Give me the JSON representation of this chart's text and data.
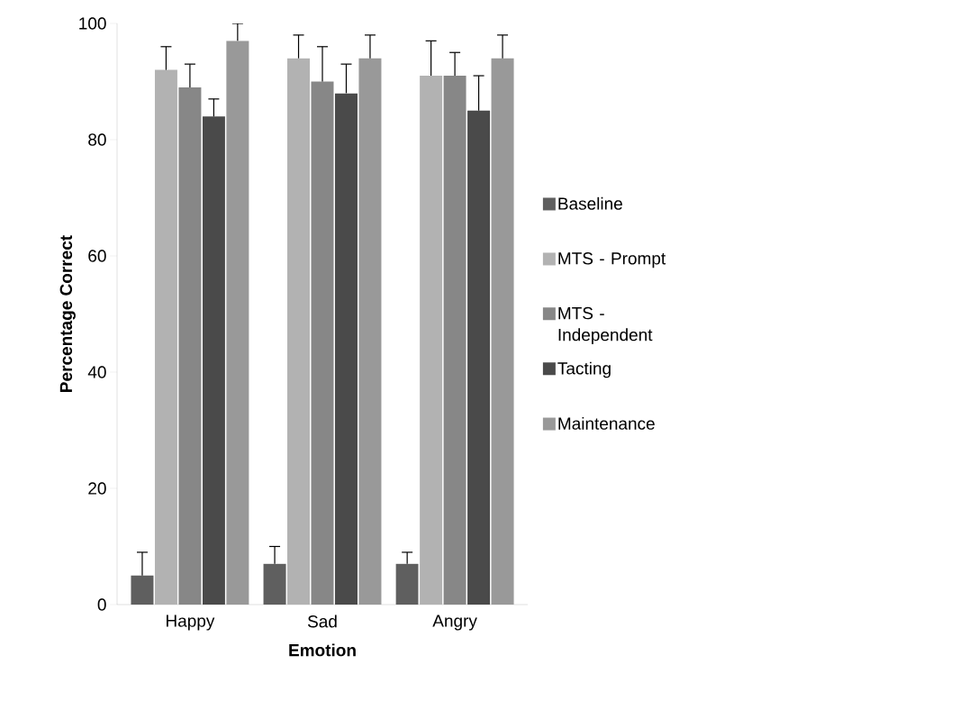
{
  "chart_data": {
    "type": "bar",
    "xlabel": "Emotion",
    "ylabel": "Percentage Correct",
    "categories": [
      "Happy",
      "Sad",
      "Angry"
    ],
    "series": [
      {
        "name": "Baseline",
        "color": "#5f5f5f",
        "values": [
          5,
          7,
          7
        ],
        "errors": [
          [
            5,
            9
          ],
          [
            7,
            10
          ],
          [
            7,
            9
          ]
        ]
      },
      {
        "name": "MTS - Prompt",
        "color": "#b2b2b2",
        "values": [
          92,
          94,
          91
        ],
        "errors": [
          [
            92,
            96
          ],
          [
            94,
            98
          ],
          [
            91,
            97
          ]
        ]
      },
      {
        "name": "MTS - Independent",
        "color": "#878787",
        "values": [
          89,
          90,
          91
        ],
        "errors": [
          [
            89,
            93
          ],
          [
            90,
            96
          ],
          [
            91,
            95
          ]
        ]
      },
      {
        "name": "Tacting",
        "color": "#4a4a4a",
        "values": [
          84,
          88,
          85
        ],
        "errors": [
          [
            84,
            87
          ],
          [
            88,
            93
          ],
          [
            85,
            91
          ]
        ]
      },
      {
        "name": "Maintenance",
        "color": "#999999",
        "values": [
          97,
          94,
          94
        ],
        "errors": [
          [
            97,
            100
          ],
          [
            94,
            98
          ],
          [
            94,
            98
          ]
        ]
      }
    ],
    "ylim": [
      0,
      100
    ],
    "yticks": [
      0,
      20,
      40,
      60,
      80,
      100
    ],
    "legend": "right"
  }
}
